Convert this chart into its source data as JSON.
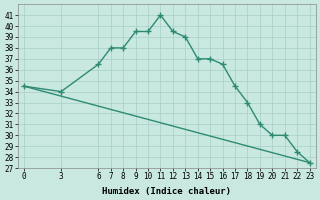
{
  "xlabel": "Humidex (Indice chaleur)",
  "hours": [
    0,
    3,
    6,
    7,
    8,
    9,
    10,
    11,
    12,
    13,
    14,
    15,
    16,
    17,
    18,
    19,
    20,
    21,
    22,
    23
  ],
  "humidex": [
    34.5,
    34.0,
    36.5,
    38.0,
    38.0,
    39.5,
    39.5,
    41.0,
    39.5,
    39.0,
    37.0,
    37.0,
    36.5,
    34.5,
    33.0,
    31.0,
    30.0,
    30.0,
    28.5,
    27.5
  ],
  "baseline_x": [
    0,
    23
  ],
  "baseline_y": [
    34.5,
    27.5
  ],
  "line_color": "#2e8b72",
  "bg_color": "#c8e8e0",
  "grid_color": "#a8cfc8",
  "ylim": [
    27,
    42
  ],
  "yticks": [
    27,
    28,
    29,
    30,
    31,
    32,
    33,
    34,
    35,
    36,
    37,
    38,
    39,
    40,
    41
  ],
  "xticks": [
    0,
    3,
    6,
    7,
    8,
    9,
    10,
    11,
    12,
    13,
    14,
    15,
    16,
    17,
    18,
    19,
    20,
    21,
    22,
    23
  ],
  "marker": "+",
  "markersize": 4,
  "linewidth": 1.0,
  "tick_fontsize": 5.5,
  "xlabel_fontsize": 6.5
}
